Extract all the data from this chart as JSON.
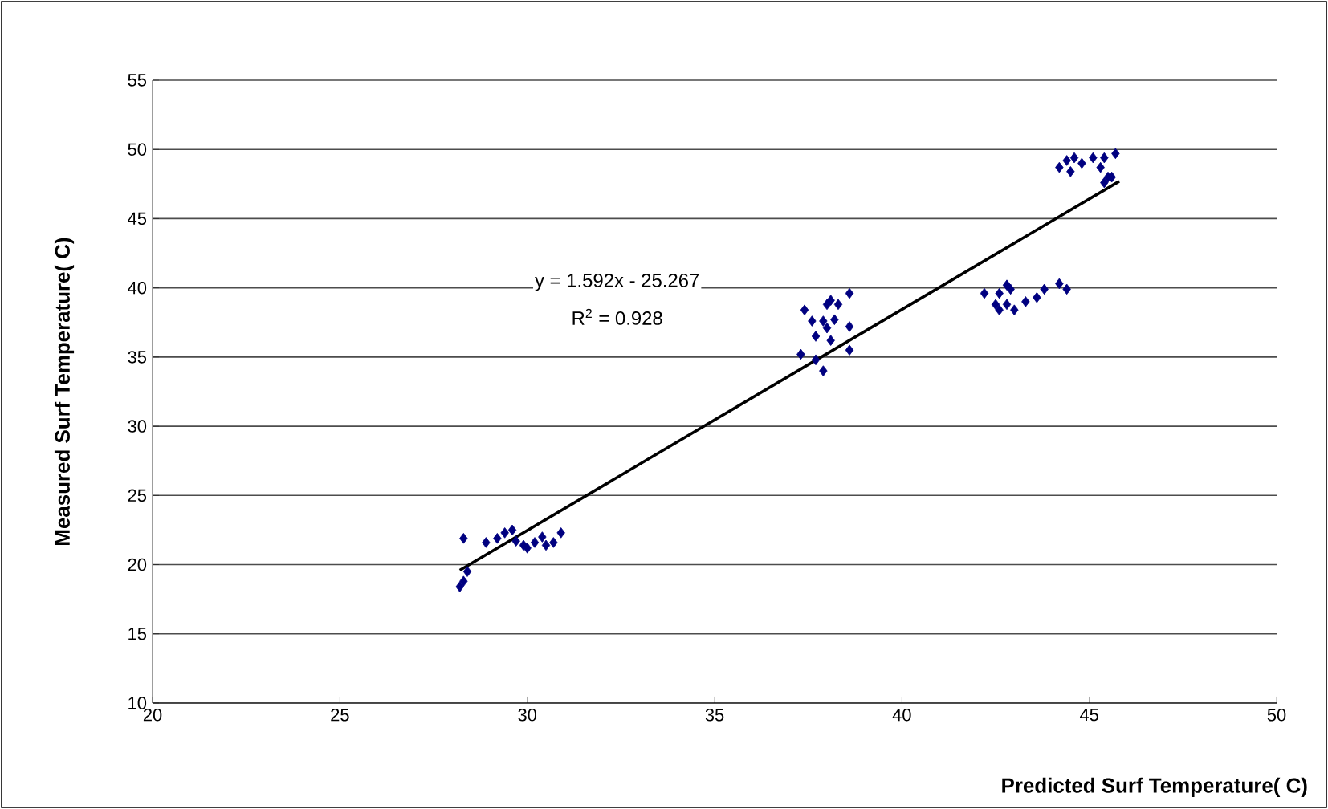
{
  "chart_data": {
    "type": "scatter",
    "xlabel": "Predicted Surf Temperature( C)",
    "ylabel": "Measured Surf Temperature( C)",
    "xlim": [
      20,
      50
    ],
    "xticks": [
      20,
      25,
      30,
      35,
      40,
      45,
      50
    ],
    "ylim": [
      10,
      55
    ],
    "yticks": [
      10,
      15,
      20,
      25,
      30,
      35,
      40,
      45,
      50,
      55
    ],
    "grid": "y",
    "marker": "diamond",
    "annotations": [
      "y = 1.592x - 25.267",
      "R$^{2}$ = 0.928"
    ],
    "series": [
      {
        "color": "#000080",
        "x": [
          28.3,
          28.2,
          28.3,
          28.4,
          28.9,
          29.2,
          29.4,
          29.6,
          29.7,
          30.0,
          30.2,
          30.5,
          30.4,
          30.7,
          30.9,
          29.9,
          37.4,
          37.3,
          37.7,
          37.9,
          38.0,
          38.1,
          38.2,
          38.3,
          38.6,
          38.6,
          37.7,
          37.9,
          38.1,
          38.6,
          37.6,
          38.0,
          42.2,
          42.6,
          42.8,
          42.9,
          42.6,
          43.0,
          43.3,
          43.6,
          43.8,
          44.2,
          44.4,
          42.8,
          42.5,
          44.2,
          44.4,
          44.6,
          44.5,
          44.8,
          45.1,
          45.3,
          45.4,
          45.5,
          45.4,
          45.7,
          45.6
        ],
        "values": [
          21.9,
          18.4,
          18.8,
          19.5,
          21.6,
          21.9,
          22.3,
          22.5,
          21.7,
          21.2,
          21.6,
          21.4,
          22.0,
          21.6,
          22.3,
          21.4,
          38.4,
          35.2,
          36.5,
          37.6,
          38.8,
          39.1,
          37.7,
          38.8,
          37.2,
          39.6,
          34.8,
          34.0,
          36.2,
          35.5,
          37.6,
          37.1,
          39.6,
          39.6,
          38.8,
          39.9,
          38.4,
          38.4,
          39.0,
          39.3,
          39.9,
          40.3,
          39.9,
          40.2,
          38.8,
          48.7,
          49.2,
          49.4,
          48.4,
          49.0,
          49.4,
          48.7,
          49.4,
          48.0,
          47.6,
          49.7,
          48.0
        ]
      },
      {
        "type": "line",
        "color": "#000000",
        "marker": "none",
        "x": [
          28.2,
          45.8
        ],
        "values": [
          19.6,
          47.7
        ]
      }
    ]
  }
}
